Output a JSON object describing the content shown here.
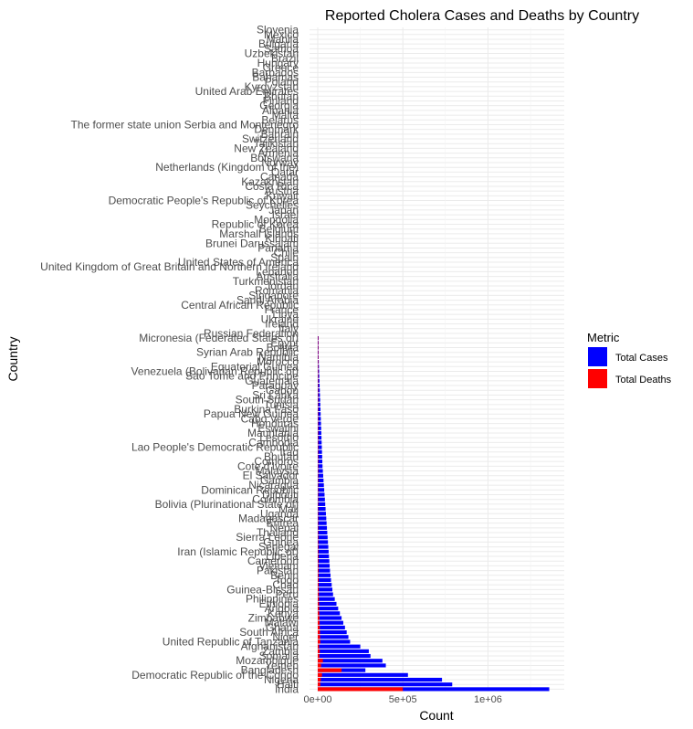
{
  "chart_data": {
    "type": "bar",
    "orientation": "horizontal",
    "title": "Reported Cholera Cases and Deaths by Country",
    "xlabel": "Count",
    "ylabel": "Country",
    "xlim": [
      0,
      1400000
    ],
    "x_ticks": [
      {
        "value": 0,
        "label": "0e+00"
      },
      {
        "value": 500000,
        "label": "5e+05"
      },
      {
        "value": 1000000,
        "label": "1e+06"
      }
    ],
    "grid": true,
    "legend": {
      "title": "Metric",
      "position": "right",
      "entries": [
        {
          "name": "Total Cases",
          "color": "#0000ff"
        },
        {
          "name": "Total Deaths",
          "color": "#ff0000"
        }
      ]
    },
    "visible_category_labels": [
      "Slovenia",
      "Mexico",
      "Manila",
      "Bulgaria",
      "Samoa",
      "Uzbekistan",
      "Brazil",
      "Hungary",
      "Greece",
      "Barbados",
      "Bahamas",
      "Poland",
      "Kyrgyzstan",
      "United Arab Emirates",
      "Bhutan",
      "Finland",
      "Georgia",
      "Albania",
      "Malta",
      "Belarus",
      "The former state union Serbia and Montenegro",
      "Denmark",
      "Bahrain",
      "Switzerland",
      "Tajikistan",
      "New Zealand",
      "Armenia",
      "Botswana",
      "Norway",
      "Netherlands (Kingdom of the)",
      "Qatar",
      "Canada",
      "Kazakhstan",
      "Costa Rica",
      "Austria",
      "Kuwait",
      "Democratic People's Republic of Korea",
      "Seychelles",
      "Japan",
      "Israel",
      "Mongolia",
      "Republic of Korea",
      "Belgium",
      "Marshall Islands",
      "Kiribati",
      "Brunei Darussalam",
      "Panama",
      "Chile",
      "Spain",
      "United States of America",
      "United Kingdom of Great Britain and Northern Ireland",
      "Lebanon",
      "Australia",
      "Turkmenistan",
      "Jordan",
      "Romania",
      "Singapore",
      "Saudi Arabia",
      "Central African Republic",
      "France",
      "Libya",
      "Ukraine",
      "Ireland",
      "Italy",
      "Russian Federation",
      "Micronesia (Federated States of)",
      "Egypt",
      "Bolivia",
      "Syrian Arab Republic",
      "Namibia",
      "Morocco",
      "Equatorial Guinea",
      "Venezuela (Bolivarian Republic of)",
      "Sao Tome and Principe",
      "Guatemala",
      "Paraguay",
      "Gabon",
      "Sri Lanka",
      "South Sudan",
      "Tunisia",
      "Burkina Faso",
      "Papua New Guinea",
      "Cabo Verde",
      "Honduras",
      "Eswatini",
      "Mauritania",
      "Lesotho",
      "Cambodia",
      "Lao People's Democratic Republic",
      "Iraq",
      "Bhutan",
      "Comoros",
      "Cote d'Ivoire",
      "Malaysia",
      "El Salvador",
      "Gambia",
      "Nicaragua",
      "Dominican Republic",
      "Djibouti",
      "Colombia",
      "Bolivia (Plurinational State of)",
      "Mali",
      "Uganda",
      "Madagascar",
      "Eritrea",
      "Nepal",
      "Thailand",
      "Sierra Leone",
      "Guinea",
      "Senegal",
      "Iran (Islamic Republic of)",
      "Liberia",
      "Cameroon",
      "Vietnam",
      "Pakistan",
      "Benin",
      "Togo",
      "Chad",
      "Guinea-Bissau",
      "Peru",
      "Philippines",
      "Ethiopia",
      "Angola",
      "Kenya",
      "Zimbabwe",
      "Malawi",
      "Ghana",
      "South Africa",
      "Niger",
      "United Republic of Tanzania",
      "Afghanistan",
      "Zambia",
      "Somalia",
      "Mozambique",
      "Yemen",
      "Bangladesh",
      "Democratic Republic of the Congo",
      "Nigeria",
      "Haiti",
      "India"
    ],
    "categories": [
      "Micronesia (Federated States of)",
      "Egypt",
      "Bolivia",
      "Syrian Arab Republic",
      "Namibia",
      "Morocco",
      "Equatorial Guinea",
      "Venezuela (Bolivarian Republic of)",
      "Sao Tome and Principe",
      "Guatemala",
      "Paraguay",
      "Gabon",
      "Sri Lanka",
      "South Sudan",
      "Tunisia",
      "Burkina Faso",
      "Papua New Guinea",
      "Cabo Verde",
      "Honduras",
      "Eswatini",
      "Mauritania",
      "Lesotho",
      "Cambodia",
      "Lao People's Democratic Republic",
      "Iraq",
      "Bhutan",
      "Comoros",
      "Cote d'Ivoire",
      "Malaysia",
      "El Salvador",
      "Gambia",
      "Nicaragua",
      "Dominican Republic",
      "Djibouti",
      "Colombia",
      "Bolivia (Plurinational State of)",
      "Mali",
      "Uganda",
      "Madagascar",
      "Eritrea",
      "Nepal",
      "Thailand",
      "Sierra Leone",
      "Guinea",
      "Senegal",
      "Iran (Islamic Republic of)",
      "Liberia",
      "Cameroon",
      "Vietnam",
      "Pakistan",
      "Benin",
      "Togo",
      "Chad",
      "Guinea-Bissau",
      "Peru",
      "Philippines",
      "Ethiopia",
      "Angola",
      "Kenya",
      "Zimbabwe",
      "Malawi",
      "Ghana",
      "South Africa",
      "Niger",
      "United Republic of Tanzania",
      "Afghanistan",
      "Zambia",
      "Somalia",
      "Mozambique",
      "Yemen",
      "Bangladesh",
      "Democratic Republic of the Congo",
      "Nigeria",
      "Haiti",
      "India"
    ],
    "series": [
      {
        "name": "Total Cases",
        "color": "#0000ff",
        "values": [
          2000,
          3000,
          3500,
          4000,
          5000,
          6000,
          7000,
          8000,
          9000,
          10000,
          11000,
          12000,
          13000,
          14000,
          15000,
          16000,
          17000,
          18000,
          19000,
          20000,
          21000,
          22000,
          23000,
          24000,
          25000,
          26000,
          27000,
          28000,
          30000,
          32000,
          34000,
          36000,
          38000,
          40000,
          42000,
          44000,
          46000,
          48000,
          50000,
          52000,
          54000,
          56000,
          58000,
          60000,
          62000,
          64000,
          66000,
          68000,
          70000,
          72000,
          75000,
          78000,
          82000,
          86000,
          90000,
          100000,
          110000,
          120000,
          130000,
          140000,
          150000,
          160000,
          170000,
          180000,
          190000,
          250000,
          300000,
          310000,
          380000,
          400000,
          280000,
          530000,
          730000,
          790000,
          1360000
        ]
      },
      {
        "name": "Total Deaths",
        "color": "#ff0000",
        "values": [
          100,
          100,
          100,
          100,
          100,
          200,
          200,
          200,
          200,
          300,
          300,
          300,
          300,
          400,
          400,
          500,
          500,
          500,
          600,
          600,
          700,
          700,
          800,
          800,
          900,
          900,
          1000,
          1000,
          1100,
          1200,
          1300,
          1400,
          1500,
          1600,
          1700,
          1800,
          1900,
          2000,
          2200,
          2400,
          2600,
          2800,
          3000,
          3200,
          3400,
          3600,
          3800,
          4000,
          4200,
          4500,
          4800,
          5000,
          5500,
          6000,
          6500,
          7000,
          7500,
          8000,
          9000,
          10000,
          11000,
          12000,
          13000,
          14000,
          15000,
          8000,
          12000,
          10000,
          30000,
          20000,
          140000,
          25000,
          18000,
          15000,
          500000
        ]
      }
    ]
  }
}
